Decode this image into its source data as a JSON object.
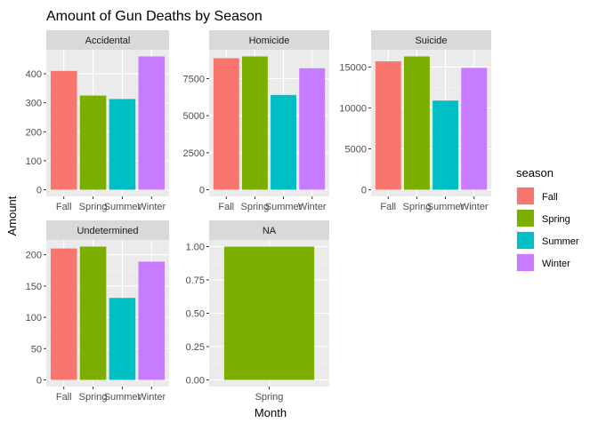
{
  "chart_data": {
    "type": "bar",
    "title": "Amount of Gun Deaths by Season",
    "xlabel": "Month",
    "ylabel": "Amount",
    "grid": true,
    "legend": {
      "title": "season",
      "placement": "right",
      "entries": [
        {
          "name": "Fall",
          "color": "#F8766D"
        },
        {
          "name": "Spring",
          "color": "#7CAE00"
        },
        {
          "name": "Summer",
          "color": "#00BFC4"
        },
        {
          "name": "Winter",
          "color": "#C77CFF"
        }
      ]
    },
    "panels": [
      {
        "strip": "Accidental",
        "categories": [
          "Fall",
          "Spring",
          "Summer",
          "Winter"
        ],
        "values": [
          410,
          325,
          313,
          460
        ],
        "ylim": [
          -23,
          483
        ],
        "yticks": [
          0,
          100,
          200,
          300,
          400
        ],
        "ytick_labels": [
          "0",
          "100",
          "200",
          "300",
          "400"
        ],
        "show_yticks": true,
        "show_xticks": true
      },
      {
        "strip": "Homicide",
        "categories": [
          "Fall",
          "Spring",
          "Summer",
          "Winter"
        ],
        "values": [
          8880,
          9000,
          6400,
          8200
        ],
        "ylim": [
          -450,
          9450
        ],
        "yticks": [
          0,
          2500,
          5000,
          7500
        ],
        "ytick_labels": [
          "0",
          "2500",
          "5000",
          "7500"
        ],
        "show_yticks": true,
        "show_xticks": true
      },
      {
        "strip": "Suicide",
        "categories": [
          "Fall",
          "Spring",
          "Summer",
          "Winter"
        ],
        "values": [
          15700,
          16300,
          10900,
          14900
        ],
        "ylim": [
          -815,
          17115
        ],
        "yticks": [
          0,
          5000,
          10000,
          15000
        ],
        "ytick_labels": [
          "0",
          "5000",
          "10000",
          "15000"
        ],
        "show_yticks": true,
        "show_xticks": true
      },
      {
        "strip": "Undetermined",
        "categories": [
          "Fall",
          "Spring",
          "Summer",
          "Winter"
        ],
        "values": [
          210,
          213,
          131,
          189
        ],
        "ylim": [
          -10.65,
          223.65
        ],
        "yticks": [
          0,
          50,
          100,
          150,
          200
        ],
        "ytick_labels": [
          "0",
          "50",
          "100",
          "150",
          "200"
        ],
        "show_yticks": true,
        "show_xticks": true
      },
      {
        "strip": "NA",
        "categories": [
          "Spring"
        ],
        "values": [
          1
        ],
        "colors": [
          "#7CAE00"
        ],
        "ylim": [
          -0.05,
          1.05
        ],
        "yticks": [
          0,
          0.25,
          0.5,
          0.75,
          1.0
        ],
        "ytick_labels": [
          "0.00",
          "0.25",
          "0.50",
          "0.75",
          "1.00"
        ],
        "show_yticks": true,
        "show_xticks": true
      }
    ]
  }
}
